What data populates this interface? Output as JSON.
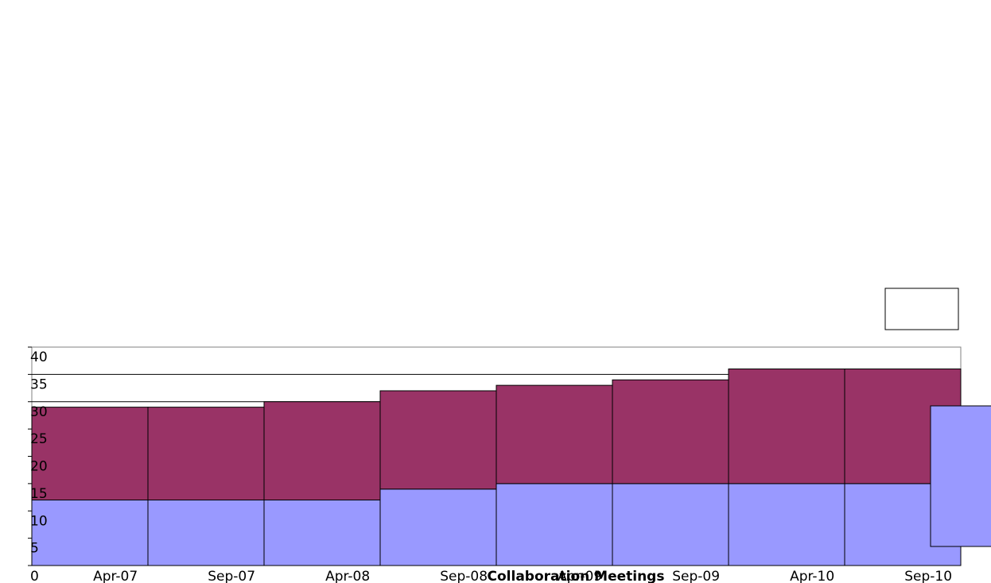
{
  "chart_data": {
    "type": "bar",
    "stacked": true,
    "categories": [
      "Apr-07",
      "Sep-07",
      "Apr-08",
      "Sep-08",
      "Apr-09",
      "Sep-09",
      "Apr-10",
      "Sep-10"
    ],
    "series": [
      {
        "values": [
          12,
          12,
          12,
          14,
          15,
          15,
          15,
          15
        ],
        "color": "#9999ff"
      },
      {
        "values": [
          17,
          17,
          18,
          18,
          18,
          19,
          21,
          21
        ],
        "color": "#993366"
      }
    ],
    "xlabel": "Collaboration Meetings",
    "ylim": [
      0,
      40
    ],
    "yticks": [
      0,
      5,
      10,
      15,
      20,
      25,
      30,
      35,
      40
    ],
    "grid": true,
    "legend": "top-right"
  }
}
